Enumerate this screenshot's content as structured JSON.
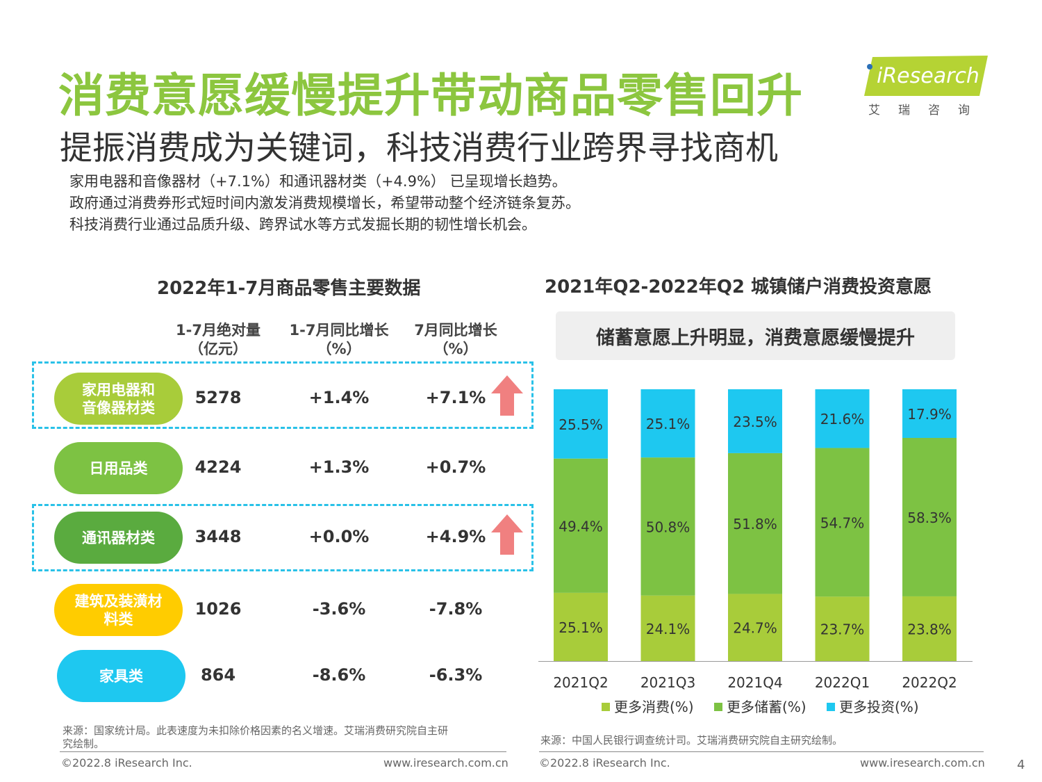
{
  "header": {
    "title": "消费意愿缓慢提升带动商品零售回升",
    "subtitle": "提振消费成为关键词，科技消费行业跨界寻找商机",
    "bullets": [
      "家用电器和音像器材（+7.1%）和通讯器材类（+4.9%） 已呈现增长趋势。",
      "政府通过消费券形式短时间内激发消费规模增长，希望带动整个经济链条复苏。",
      "科技消费行业通过品质升级、跨界试水等方式发掘长期的韧性增长机会。"
    ]
  },
  "logo": {
    "name": "iResearch",
    "sub": "艾瑞咨询"
  },
  "left_panel": {
    "title": "2022年1-7月商品零售主要数据",
    "col1": [
      "1-7月绝对量",
      "（亿元）"
    ],
    "col2": [
      "1-7月同比增长",
      "（%）"
    ],
    "col3": [
      "7月同比增长",
      "（%）"
    ],
    "rows": [
      {
        "label": [
          "家用电器和",
          "音像器材类"
        ],
        "abs": "5278",
        "ytd": "+1.4%",
        "jul": "+7.1%",
        "color": "#a8cc3a",
        "arrow": true,
        "highlight": true
      },
      {
        "label": [
          "日用品类"
        ],
        "abs": "4224",
        "ytd": "+1.3%",
        "jul": "+0.7%",
        "color": "#7dc243",
        "arrow": false,
        "highlight": false
      },
      {
        "label": [
          "通讯器材类"
        ],
        "abs": "3448",
        "ytd": "+0.0%",
        "jul": "+4.9%",
        "color": "#5aab3f",
        "arrow": true,
        "highlight": true
      },
      {
        "label": [
          "建筑及装潢材",
          "料类"
        ],
        "abs": "1026",
        "ytd": "-3.6%",
        "jul": "-7.8%",
        "color": "#ffcc00",
        "arrow": false,
        "highlight": false
      },
      {
        "label": [
          "家具类"
        ],
        "abs": "864",
        "ytd": "-8.6%",
        "jul": "-6.3%",
        "color": "#1ec8f0",
        "arrow": false,
        "highlight": false
      }
    ],
    "source": [
      "来源：国家统计局。此表速度为未扣除价格因素的名义增速。艾瑞消费研究院自主研",
      "究绘制。"
    ],
    "footer_left": "©2022.8 iResearch Inc.",
    "footer_right": "www.iresearch.com.cn"
  },
  "right_panel": {
    "title": "2021年Q2-2022年Q2 城镇储户消费投资意愿",
    "callout": "储蓄意愿上升明显，消费意愿缓慢提升",
    "source": "来源：中国人民银行调查统计司。艾瑞消费研究院自主研究绘制。",
    "footer_left": "©2022.8 iResearch Inc.",
    "footer_right": "www.iresearch.com.cn"
  },
  "page_number": "4",
  "chart_data": {
    "type": "bar",
    "stacked": true,
    "percent": true,
    "categories": [
      "2021Q2",
      "2021Q3",
      "2021Q4",
      "2022Q1",
      "2022Q2"
    ],
    "series": [
      {
        "name": "更多消费(%)",
        "values": [
          25.1,
          24.1,
          24.7,
          23.7,
          23.8
        ],
        "labels": [
          "25.1%",
          "24.1%",
          "24.7%",
          "23.7%",
          "23.8%"
        ],
        "color": "#a8cc3a"
      },
      {
        "name": "更多储蓄(%)",
        "values": [
          49.4,
          50.8,
          51.8,
          54.7,
          58.3
        ],
        "labels": [
          "49.4%",
          "50.8%",
          "51.8%",
          "54.7%",
          "58.3%"
        ],
        "color": "#7dc243"
      },
      {
        "name": "更多投资(%)",
        "values": [
          25.5,
          25.1,
          23.5,
          21.6,
          17.9
        ],
        "labels": [
          "25.5%",
          "25.1%",
          "23.5%",
          "21.6%",
          "17.9%"
        ],
        "color": "#1ec8f0"
      }
    ],
    "legend_position": "bottom",
    "grid": false
  }
}
